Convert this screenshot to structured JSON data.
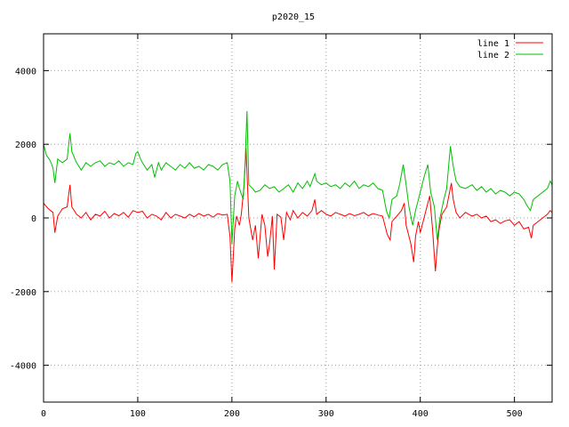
{
  "chart_data": {
    "type": "line",
    "title": "p2020_15",
    "xlim": [
      0,
      540
    ],
    "ylim": [
      -5000,
      5000
    ],
    "x_ticks": [
      0,
      100,
      200,
      300,
      400,
      500
    ],
    "y_ticks": [
      -4000,
      -2000,
      0,
      2000,
      4000
    ],
    "grid": true,
    "legend_position": "top-right",
    "series": [
      {
        "name": "line 1",
        "color": "#ff0000",
        "points": [
          [
            0,
            400
          ],
          [
            5,
            250
          ],
          [
            10,
            150
          ],
          [
            12,
            -400
          ],
          [
            15,
            50
          ],
          [
            20,
            250
          ],
          [
            25,
            300
          ],
          [
            28,
            900
          ],
          [
            30,
            300
          ],
          [
            35,
            100
          ],
          [
            40,
            0
          ],
          [
            45,
            150
          ],
          [
            50,
            -50
          ],
          [
            55,
            100
          ],
          [
            60,
            50
          ],
          [
            65,
            180
          ],
          [
            70,
            0
          ],
          [
            75,
            120
          ],
          [
            80,
            60
          ],
          [
            85,
            150
          ],
          [
            90,
            20
          ],
          [
            95,
            200
          ],
          [
            100,
            150
          ],
          [
            105,
            180
          ],
          [
            110,
            0
          ],
          [
            115,
            100
          ],
          [
            120,
            50
          ],
          [
            125,
            -50
          ],
          [
            130,
            150
          ],
          [
            135,
            0
          ],
          [
            140,
            100
          ],
          [
            145,
            50
          ],
          [
            150,
            0
          ],
          [
            155,
            100
          ],
          [
            160,
            30
          ],
          [
            165,
            120
          ],
          [
            170,
            50
          ],
          [
            175,
            100
          ],
          [
            180,
            20
          ],
          [
            185,
            120
          ],
          [
            190,
            80
          ],
          [
            195,
            100
          ],
          [
            198,
            -500
          ],
          [
            200,
            -1750
          ],
          [
            203,
            -300
          ],
          [
            205,
            50
          ],
          [
            208,
            -200
          ],
          [
            210,
            100
          ],
          [
            213,
            900
          ],
          [
            215,
            1900
          ],
          [
            218,
            0
          ],
          [
            222,
            -600
          ],
          [
            225,
            -200
          ],
          [
            228,
            -1100
          ],
          [
            232,
            100
          ],
          [
            235,
            -200
          ],
          [
            238,
            -1050
          ],
          [
            240,
            -700
          ],
          [
            243,
            50
          ],
          [
            245,
            -1400
          ],
          [
            248,
            100
          ],
          [
            252,
            20
          ],
          [
            255,
            -600
          ],
          [
            258,
            150
          ],
          [
            262,
            -50
          ],
          [
            265,
            200
          ],
          [
            270,
            0
          ],
          [
            275,
            150
          ],
          [
            280,
            50
          ],
          [
            285,
            200
          ],
          [
            288,
            500
          ],
          [
            290,
            100
          ],
          [
            295,
            200
          ],
          [
            300,
            100
          ],
          [
            305,
            50
          ],
          [
            310,
            150
          ],
          [
            315,
            100
          ],
          [
            320,
            50
          ],
          [
            325,
            120
          ],
          [
            330,
            60
          ],
          [
            335,
            100
          ],
          [
            340,
            150
          ],
          [
            345,
            60
          ],
          [
            350,
            120
          ],
          [
            355,
            80
          ],
          [
            360,
            50
          ],
          [
            365,
            -450
          ],
          [
            368,
            -600
          ],
          [
            370,
            -100
          ],
          [
            375,
            50
          ],
          [
            380,
            200
          ],
          [
            383,
            400
          ],
          [
            385,
            -200
          ],
          [
            390,
            -700
          ],
          [
            393,
            -1200
          ],
          [
            395,
            -500
          ],
          [
            398,
            -100
          ],
          [
            400,
            -400
          ],
          [
            403,
            -100
          ],
          [
            407,
            300
          ],
          [
            410,
            600
          ],
          [
            413,
            -300
          ],
          [
            416,
            -1450
          ],
          [
            418,
            -800
          ],
          [
            420,
            -300
          ],
          [
            423,
            100
          ],
          [
            428,
            300
          ],
          [
            433,
            950
          ],
          [
            435,
            500
          ],
          [
            438,
            150
          ],
          [
            442,
            0
          ],
          [
            448,
            150
          ],
          [
            455,
            50
          ],
          [
            460,
            100
          ],
          [
            465,
            0
          ],
          [
            470,
            50
          ],
          [
            475,
            -100
          ],
          [
            480,
            -50
          ],
          [
            485,
            -150
          ],
          [
            490,
            -80
          ],
          [
            495,
            -50
          ],
          [
            500,
            -200
          ],
          [
            505,
            -100
          ],
          [
            510,
            -300
          ],
          [
            515,
            -250
          ],
          [
            518,
            -550
          ],
          [
            520,
            -200
          ],
          [
            525,
            -100
          ],
          [
            530,
            0
          ],
          [
            535,
            100
          ],
          [
            538,
            200
          ],
          [
            540,
            150
          ]
        ]
      },
      {
        "name": "line 2",
        "color": "#00c000",
        "points": [
          [
            0,
            2000
          ],
          [
            3,
            1700
          ],
          [
            6,
            1600
          ],
          [
            8,
            1500
          ],
          [
            10,
            1350
          ],
          [
            12,
            950
          ],
          [
            15,
            1600
          ],
          [
            20,
            1500
          ],
          [
            25,
            1600
          ],
          [
            28,
            2300
          ],
          [
            30,
            1800
          ],
          [
            35,
            1500
          ],
          [
            40,
            1300
          ],
          [
            45,
            1500
          ],
          [
            50,
            1400
          ],
          [
            55,
            1500
          ],
          [
            60,
            1550
          ],
          [
            65,
            1400
          ],
          [
            70,
            1500
          ],
          [
            75,
            1450
          ],
          [
            80,
            1550
          ],
          [
            85,
            1400
          ],
          [
            90,
            1500
          ],
          [
            95,
            1450
          ],
          [
            98,
            1750
          ],
          [
            100,
            1800
          ],
          [
            103,
            1600
          ],
          [
            105,
            1500
          ],
          [
            110,
            1300
          ],
          [
            115,
            1450
          ],
          [
            118,
            1100
          ],
          [
            122,
            1500
          ],
          [
            125,
            1300
          ],
          [
            130,
            1500
          ],
          [
            135,
            1400
          ],
          [
            140,
            1300
          ],
          [
            145,
            1450
          ],
          [
            150,
            1350
          ],
          [
            155,
            1500
          ],
          [
            160,
            1350
          ],
          [
            165,
            1400
          ],
          [
            170,
            1300
          ],
          [
            175,
            1450
          ],
          [
            180,
            1400
          ],
          [
            185,
            1300
          ],
          [
            190,
            1450
          ],
          [
            195,
            1500
          ],
          [
            198,
            1000
          ],
          [
            200,
            -700
          ],
          [
            203,
            600
          ],
          [
            206,
            1000
          ],
          [
            208,
            800
          ],
          [
            212,
            500
          ],
          [
            214,
            1500
          ],
          [
            216,
            2900
          ],
          [
            218,
            900
          ],
          [
            222,
            800
          ],
          [
            225,
            700
          ],
          [
            230,
            750
          ],
          [
            235,
            900
          ],
          [
            240,
            800
          ],
          [
            245,
            850
          ],
          [
            250,
            700
          ],
          [
            255,
            800
          ],
          [
            260,
            900
          ],
          [
            265,
            700
          ],
          [
            270,
            950
          ],
          [
            275,
            800
          ],
          [
            280,
            1000
          ],
          [
            283,
            850
          ],
          [
            288,
            1200
          ],
          [
            290,
            1000
          ],
          [
            295,
            900
          ],
          [
            300,
            950
          ],
          [
            305,
            850
          ],
          [
            310,
            900
          ],
          [
            315,
            800
          ],
          [
            320,
            950
          ],
          [
            325,
            850
          ],
          [
            330,
            1000
          ],
          [
            335,
            800
          ],
          [
            340,
            900
          ],
          [
            345,
            850
          ],
          [
            350,
            950
          ],
          [
            355,
            800
          ],
          [
            360,
            750
          ],
          [
            364,
            200
          ],
          [
            367,
            0
          ],
          [
            370,
            500
          ],
          [
            375,
            600
          ],
          [
            378,
            900
          ],
          [
            382,
            1450
          ],
          [
            385,
            900
          ],
          [
            388,
            300
          ],
          [
            392,
            -200
          ],
          [
            395,
            200
          ],
          [
            398,
            500
          ],
          [
            402,
            900
          ],
          [
            405,
            1200
          ],
          [
            408,
            1450
          ],
          [
            411,
            700
          ],
          [
            415,
            300
          ],
          [
            418,
            -600
          ],
          [
            421,
            0
          ],
          [
            425,
            500
          ],
          [
            428,
            800
          ],
          [
            432,
            1950
          ],
          [
            435,
            1400
          ],
          [
            438,
            1000
          ],
          [
            442,
            850
          ],
          [
            448,
            800
          ],
          [
            455,
            900
          ],
          [
            460,
            750
          ],
          [
            465,
            850
          ],
          [
            470,
            700
          ],
          [
            475,
            800
          ],
          [
            480,
            650
          ],
          [
            485,
            750
          ],
          [
            490,
            700
          ],
          [
            495,
            600
          ],
          [
            500,
            700
          ],
          [
            505,
            650
          ],
          [
            510,
            500
          ],
          [
            513,
            350
          ],
          [
            517,
            200
          ],
          [
            520,
            500
          ],
          [
            525,
            600
          ],
          [
            530,
            700
          ],
          [
            535,
            800
          ],
          [
            538,
            1000
          ],
          [
            540,
            900
          ]
        ]
      }
    ]
  }
}
